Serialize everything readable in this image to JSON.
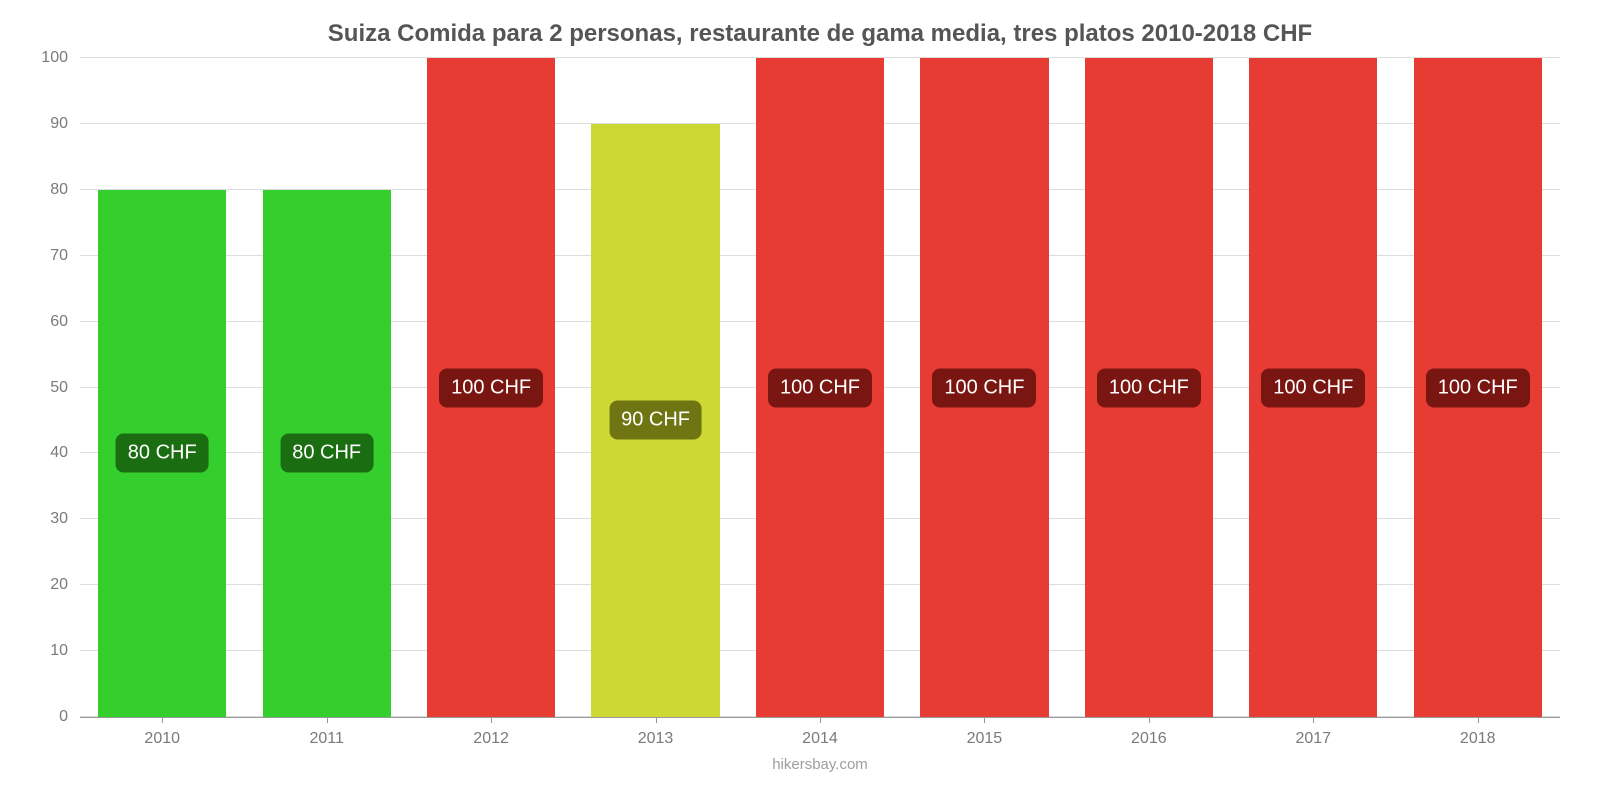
{
  "chart": {
    "type": "bar",
    "title": "Suiza Comida para 2 personas, restaurante de gama media, tres platos 2010-2018 CHF",
    "title_fontsize": 24,
    "title_color": "#555555",
    "background_color": "#ffffff",
    "grid_color": "#dddddd",
    "axis_color": "#999999",
    "tick_label_color": "#7a7a7a",
    "tick_label_fontsize": 16,
    "bar_width_pct": 78,
    "ylim": [
      0,
      100
    ],
    "ytick_step": 10,
    "yticks": [
      0,
      10,
      20,
      30,
      40,
      50,
      60,
      70,
      80,
      90,
      100
    ],
    "categories": [
      "2010",
      "2011",
      "2012",
      "2013",
      "2014",
      "2015",
      "2016",
      "2017",
      "2018"
    ],
    "values": [
      80,
      80,
      100,
      90,
      100,
      100,
      100,
      100,
      100
    ],
    "value_labels": [
      "80 CHF",
      "80 CHF",
      "100 CHF",
      "90 CHF",
      "100 CHF",
      "100 CHF",
      "100 CHF",
      "100 CHF",
      "100 CHF"
    ],
    "bar_colors": [
      "#34ce2d",
      "#34ce2d",
      "#e73c34",
      "#cdd835",
      "#e73c34",
      "#e73c34",
      "#e73c34",
      "#e73c34",
      "#e73c34"
    ],
    "label_bg_colors": [
      "#1a6d11",
      "#1a6d11",
      "#7a1611",
      "#6e7512",
      "#7a1611",
      "#7a1611",
      "#7a1611",
      "#7a1611",
      "#7a1611"
    ],
    "value_label_fontsize": 20,
    "value_label_color": "#ffffff",
    "value_label_radius": 8,
    "source": "hikersbay.com",
    "source_color": "#9e9e9e",
    "source_fontsize": 15
  }
}
